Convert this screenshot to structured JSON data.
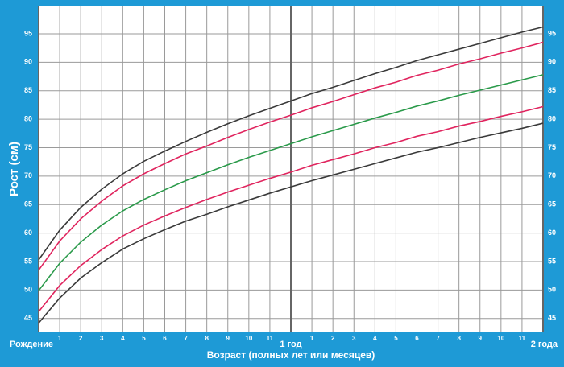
{
  "chart_data": {
    "type": "line",
    "y_label": "Рост (см)",
    "x_label": "Возраст (полных лет или месяцев)",
    "x": [
      0,
      1,
      2,
      3,
      4,
      5,
      6,
      7,
      8,
      9,
      10,
      11,
      12,
      13,
      14,
      15,
      16,
      17,
      18,
      19,
      20,
      21,
      22,
      23,
      24
    ],
    "series": [
      {
        "color": "#3a3a3a",
        "values": [
          55.3,
          60.5,
          64.5,
          67.7,
          70.4,
          72.6,
          74.4,
          76.1,
          77.7,
          79.2,
          80.6,
          81.9,
          83.2,
          84.5,
          85.6,
          86.8,
          88.0,
          89.1,
          90.3,
          91.3,
          92.3,
          93.3,
          94.3,
          95.3,
          96.2
        ]
      },
      {
        "color": "#e0245e",
        "values": [
          53.5,
          58.6,
          62.5,
          65.6,
          68.3,
          70.4,
          72.2,
          73.9,
          75.3,
          76.8,
          78.2,
          79.5,
          80.7,
          82.0,
          83.1,
          84.3,
          85.5,
          86.5,
          87.7,
          88.6,
          89.7,
          90.6,
          91.6,
          92.5,
          93.5
        ]
      },
      {
        "color": "#2a9a4a",
        "values": [
          49.9,
          54.7,
          58.4,
          61.4,
          63.9,
          65.9,
          67.6,
          69.2,
          70.6,
          72.0,
          73.3,
          74.5,
          75.7,
          76.9,
          78.0,
          79.1,
          80.2,
          81.2,
          82.3,
          83.2,
          84.2,
          85.1,
          86.0,
          86.9,
          87.8
        ]
      },
      {
        "color": "#e0245e",
        "values": [
          46.2,
          50.8,
          54.3,
          57.1,
          59.5,
          61.4,
          63.0,
          64.5,
          65.9,
          67.2,
          68.4,
          69.6,
          70.7,
          71.9,
          72.9,
          73.9,
          75.0,
          75.9,
          77.0,
          77.8,
          78.8,
          79.6,
          80.5,
          81.3,
          82.2
        ]
      },
      {
        "color": "#3a3a3a",
        "values": [
          44.2,
          48.6,
          52.1,
          54.8,
          57.2,
          59.0,
          60.6,
          62.1,
          63.3,
          64.6,
          65.8,
          67.0,
          68.1,
          69.2,
          70.2,
          71.2,
          72.2,
          73.2,
          74.2,
          75.0,
          75.9,
          76.8,
          77.6,
          78.4,
          79.3
        ]
      }
    ],
    "xlim": [
      0,
      24
    ],
    "xticks": [
      {
        "value": 0,
        "label": "Рождение"
      },
      1,
      2,
      3,
      4,
      5,
      6,
      7,
      8,
      9,
      10,
      11,
      {
        "value": 12,
        "label": "1 год"
      },
      {
        "value": 13,
        "label": "1"
      },
      {
        "value": 14,
        "label": "2"
      },
      {
        "value": 15,
        "label": "3"
      },
      {
        "value": 16,
        "label": "4"
      },
      {
        "value": 17,
        "label": "5"
      },
      {
        "value": 18,
        "label": "6"
      },
      {
        "value": 19,
        "label": "7"
      },
      {
        "value": 20,
        "label": "8"
      },
      {
        "value": 21,
        "label": "9"
      },
      {
        "value": 22,
        "label": "10"
      },
      {
        "value": 23,
        "label": "11"
      },
      {
        "value": 24,
        "label": "2 года"
      }
    ],
    "ylim": [
      42.7,
      99.8
    ],
    "yticks": [
      45,
      50,
      55,
      60,
      65,
      70,
      75,
      80,
      85,
      90,
      95
    ],
    "grid": true
  }
}
